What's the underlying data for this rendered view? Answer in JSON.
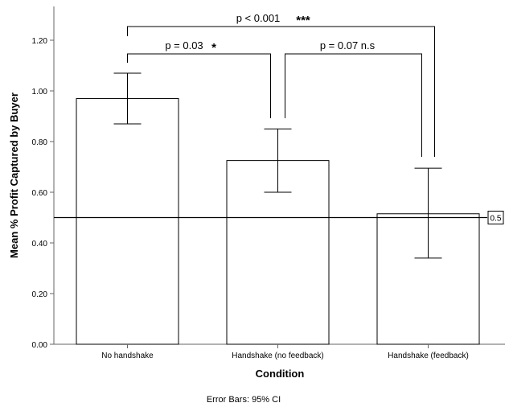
{
  "chart_data": {
    "type": "bar",
    "categories": [
      "No handshake",
      "Handshake (no feedback)",
      "Handshake (feedback)"
    ],
    "values": [
      0.97,
      0.725,
      0.515
    ],
    "error_bars": {
      "label": "Error Bars: 95% CI",
      "lower": [
        0.87,
        0.6,
        0.34
      ],
      "upper": [
        1.07,
        0.85,
        0.695
      ]
    },
    "xlabel": "Condition",
    "ylabel": "Mean % Profit Captured by Buyer",
    "ylim": [
      0,
      1.35
    ],
    "yticks": [
      0,
      0.2,
      0.4,
      0.6,
      0.8,
      1.0,
      1.2
    ],
    "ytick_labels": [
      "0.00",
      "0.20",
      "0.40",
      "0.60",
      "0.80",
      "1.00",
      "1.20"
    ],
    "grid": false,
    "reference_line": {
      "value": 0.5,
      "label": "0.5"
    },
    "annotations": [
      {
        "from": 0,
        "to": 2,
        "label": "p < 0.001",
        "stars": "***"
      },
      {
        "from": 0,
        "to": 1,
        "label": "p = 0.03",
        "stars": "*"
      },
      {
        "from": 1,
        "to": 2,
        "label": "p = 0.07 n.s",
        "stars": ""
      }
    ],
    "colors": {
      "bar_fill": "#ffffff",
      "stroke": "#000000",
      "axis": "#666666"
    }
  }
}
